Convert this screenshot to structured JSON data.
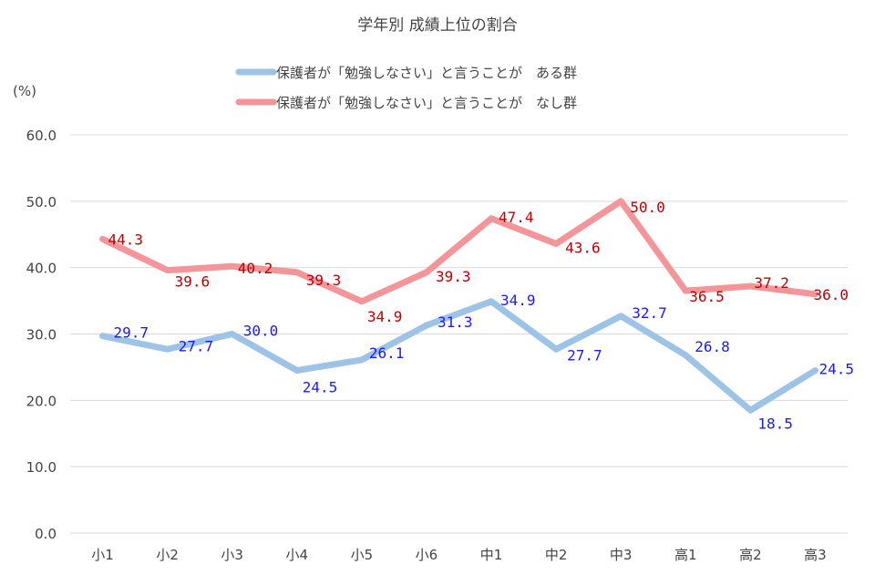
{
  "chart_data": {
    "type": "line",
    "title": "学年別  成績上位の割合",
    "ylabel": "(%)",
    "xlabel": "",
    "ylim": [
      0,
      60
    ],
    "yticks": [
      "0.0",
      "10.0",
      "20.0",
      "30.0",
      "40.0",
      "50.0",
      "60.0"
    ],
    "grid": true,
    "legend_position": "top",
    "categories": [
      "小1",
      "小2",
      "小3",
      "小4",
      "小5",
      "小6",
      "中1",
      "中2",
      "中3",
      "高1",
      "高2",
      "高3"
    ],
    "series": [
      {
        "name": "保護者が「勉強しなさい」と言うことが　ある群",
        "color": "#9dc3e6",
        "label_color": "#1a1aff",
        "values": [
          29.7,
          27.7,
          30.0,
          24.5,
          26.1,
          31.3,
          34.9,
          27.7,
          32.7,
          26.8,
          18.5,
          24.5
        ],
        "labels": [
          "29.7",
          "27.7",
          "30.0",
          "24.5",
          "26.1",
          "31.3",
          "34.9",
          "27.7",
          "32.7",
          "26.8",
          "18.5",
          "24.5"
        ]
      },
      {
        "name": "保護者が「勉強しなさい」と言うことが　なし群",
        "color": "#f4959a",
        "label_color": "#c00000",
        "values": [
          44.3,
          39.6,
          40.2,
          39.3,
          34.9,
          39.3,
          47.4,
          43.6,
          50.0,
          36.5,
          37.2,
          36.0
        ],
        "labels": [
          "44.3",
          "39.6",
          "40.2",
          "39.3",
          "34.9",
          "39.3",
          "47.4",
          "43.6",
          "50.0",
          "36.5",
          "37.2",
          "36.0"
        ]
      }
    ]
  }
}
